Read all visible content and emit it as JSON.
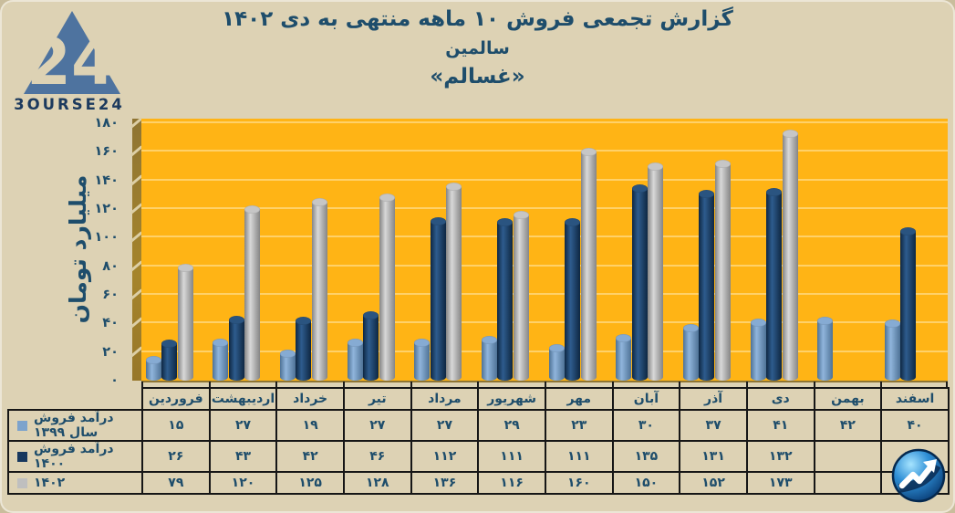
{
  "page": {
    "background": "#DDD2B4",
    "plot_background": "#FFB415",
    "grid_color": "#FFD169",
    "text_color": "#1E4D6B"
  },
  "brand": {
    "name": "bourse24-logo",
    "wordmark": "3OURSE24",
    "triangle_number": "24",
    "triangle_color": "#4E739F",
    "wordmark_color": "#1C3A5E"
  },
  "title": {
    "line1": "گزارش تجمعی فروش ۱۰ ماهه منتهی به دی ۱۴۰۲",
    "line2": "سالمین",
    "line3": "«غسالم»"
  },
  "chart_data": {
    "type": "bar",
    "title": "گزارش تجمعی فروش ۱۰ ماهه منتهی به دی ۱۴۰۲ - سالمین «غسالم»",
    "ylabel": "میلیارد تومان",
    "xlabel": "",
    "ylim": [
      0,
      180
    ],
    "ytick_step": 20,
    "grid": true,
    "legend_position": "table-rows-left",
    "digit_style": "persian",
    "categories": [
      "فروردین",
      "اردیبهشت",
      "خرداد",
      "تیر",
      "مرداد",
      "شهریور",
      "مهر",
      "آبان",
      "آذر",
      "دی",
      "بهمن",
      "اسفند"
    ],
    "series": [
      {
        "name": "درآمد فروش سال ۱۳۹۹",
        "color": "#7DA3CC",
        "bar_edge": "#4E7296",
        "bar_mid": "#90B5DC",
        "bar_cap": "#86ABD3",
        "values": [
          15,
          27,
          19,
          27,
          27,
          29,
          23,
          30,
          37,
          41,
          42,
          40
        ]
      },
      {
        "name": "درآمد فروش ۱۴۰۰",
        "color": "#17375E",
        "bar_edge": "#0E2742",
        "bar_mid": "#2E5C8E",
        "bar_cap": "#2A5480",
        "values": [
          26,
          43,
          42,
          46,
          112,
          111,
          111,
          135,
          131,
          132,
          null,
          105
        ]
      },
      {
        "name": "۱۴۰۲",
        "color": "#BFBFBF",
        "bar_edge": "#858585",
        "bar_mid": "#D8D8D8",
        "bar_cap": "#C6C6C6",
        "values": [
          79,
          120,
          125,
          128,
          136,
          116,
          160,
          150,
          152,
          173,
          null,
          null
        ]
      }
    ]
  },
  "footer_logo": {
    "name": "bourse24-arrow-logo"
  }
}
